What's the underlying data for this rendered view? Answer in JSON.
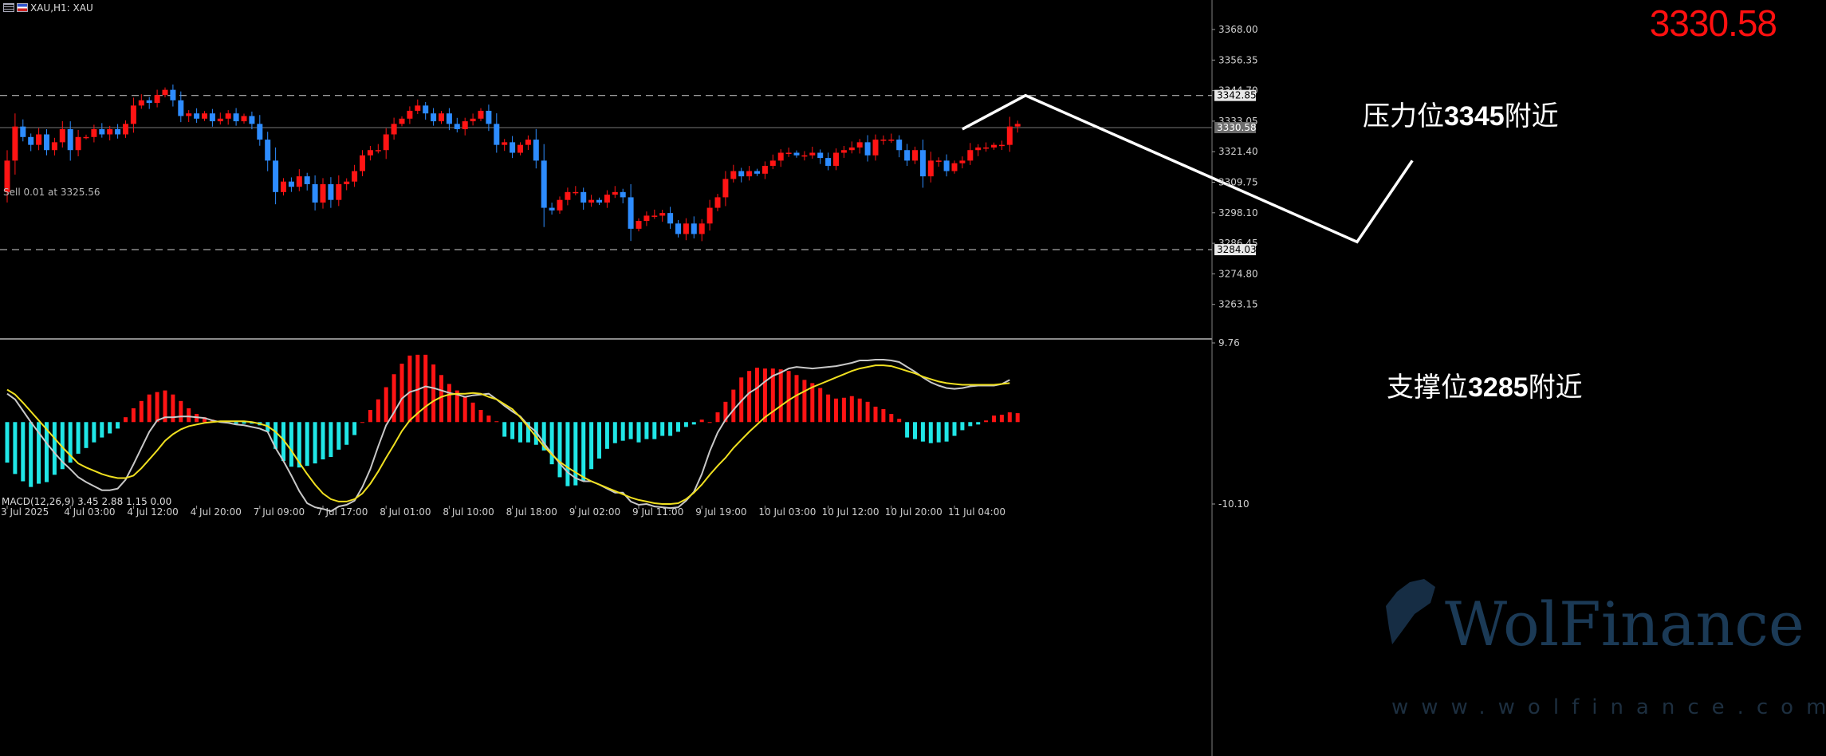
{
  "header": {
    "title": "XAU,H1: XAU",
    "last_price": "3330.58",
    "bid_line_label": "Sell 0.01 at 3325.56"
  },
  "icons": {
    "menu": "menu-icon",
    "symbol": "flag-icon"
  },
  "colors": {
    "background": "#000000",
    "bull_candle": "#ff1414",
    "bear_candle": "#2d8cff",
    "hist_pos": "#ff1414",
    "hist_neg": "#20e6e6",
    "signal_line": "#f0e020",
    "macd_line": "#c8c8c8",
    "price_big": "#ff1010",
    "projection": "#ffffff"
  },
  "annotations": {
    "resistance": {
      "prefix": "压力位",
      "value": "3345",
      "suffix": "附近"
    },
    "support": {
      "prefix": "支撑位",
      "value": "3285",
      "suffix": "附近"
    }
  },
  "watermark": {
    "brand": "WolFinance",
    "url": "www.wolfinance.com"
  },
  "chart_data": [
    {
      "type": "candlestick",
      "title": "XAU,H1: XAU",
      "ylim": [
        3251.5,
        3375
      ],
      "y_ticks": [
        "3368.00",
        "3356.35",
        "3344.70",
        "3333.05",
        "3321.40",
        "3309.75",
        "3298.10",
        "3286.45",
        "3274.80",
        "3263.15"
      ],
      "y_tick_values": [
        3368.0,
        3356.35,
        3344.7,
        3333.05,
        3321.4,
        3309.75,
        3298.1,
        3286.45,
        3274.8,
        3263.15
      ],
      "price_labels": [
        {
          "value": 3342.85,
          "label": "3342.85",
          "style": "dashed",
          "meaning": "resistance"
        },
        {
          "value": 3330.58,
          "label": "3330.58",
          "style": "solid",
          "meaning": "current"
        },
        {
          "value": 3284.03,
          "label": "3284.03",
          "style": "dashed",
          "meaning": "support"
        }
      ],
      "x_ticks": [
        {
          "i": 0,
          "label": "3 Jul 2025"
        },
        {
          "i": 8,
          "label": "4 Jul 03:00"
        },
        {
          "i": 16,
          "label": "4 Jul 12:00"
        },
        {
          "i": 24,
          "label": "4 Jul 20:00"
        },
        {
          "i": 32,
          "label": "7 Jul 09:00"
        },
        {
          "i": 40,
          "label": "7 Jul 17:00"
        },
        {
          "i": 48,
          "label": "8 Jul 01:00"
        },
        {
          "i": 56,
          "label": "8 Jul 10:00"
        },
        {
          "i": 64,
          "label": "8 Jul 18:00"
        },
        {
          "i": 72,
          "label": "9 Jul 02:00"
        },
        {
          "i": 80,
          "label": "9 Jul 11:00"
        },
        {
          "i": 88,
          "label": "9 Jul 19:00"
        },
        {
          "i": 96,
          "label": "10 Jul 03:00"
        },
        {
          "i": 104,
          "label": "10 Jul 12:00"
        },
        {
          "i": 112,
          "label": "10 Jul 20:00"
        },
        {
          "i": 120,
          "label": "11 Jul 04:00"
        }
      ],
      "closes": [
        3318,
        3331,
        3327,
        3324,
        3328,
        3322,
        3325,
        3330,
        3322,
        3327,
        3327,
        3330,
        3328,
        3330,
        3328,
        3332,
        3339,
        3341,
        3340,
        3343,
        3345,
        3341,
        3335,
        3336,
        3334,
        3336,
        3333,
        3334,
        3336,
        3333,
        3335,
        3332,
        3326,
        3318,
        3306,
        3310,
        3308,
        3312,
        3309,
        3302,
        3309,
        3303,
        3309,
        3310,
        3314,
        3320,
        3322,
        3322,
        3328,
        3332,
        3334,
        3337,
        3339,
        3336,
        3333,
        3336,
        3332,
        3330,
        3333,
        3334,
        3337,
        3332,
        3324,
        3325,
        3321,
        3324,
        3326,
        3318,
        3300,
        3299,
        3303,
        3306,
        3306,
        3302,
        3303,
        3302,
        3305,
        3306,
        3304,
        3292,
        3295,
        3297,
        3297,
        3298,
        3294,
        3290,
        3294,
        3290,
        3294,
        3300,
        3304,
        3311,
        3314,
        3312,
        3314,
        3313,
        3316,
        3318,
        3321,
        3321,
        3320,
        3320,
        3321,
        3319,
        3316,
        3321,
        3322,
        3323,
        3325,
        3320,
        3326,
        3326,
        3326,
        3322,
        3318,
        3322,
        3312,
        3318,
        3318,
        3314,
        3317,
        3318,
        3322,
        3323,
        3323,
        3324,
        3324,
        3331,
        3332
      ],
      "projection": [
        {
          "i": 121,
          "value": 3330
        },
        {
          "i": 129,
          "value": 3342.85
        },
        {
          "i": 171,
          "value": 3287
        },
        {
          "i": 178,
          "value": 3318
        }
      ]
    },
    {
      "type": "bar",
      "title": "MACD(12,26,9) 3.45 2.88 1.15 0.00",
      "indicator": "MACD(12,26,9)",
      "ylim": [
        -10.1,
        9.76
      ],
      "y_ticks": [
        "9.76",
        "-10.10"
      ],
      "values": [
        -5.0,
        -6.4,
        -7.3,
        -8.0,
        -7.6,
        -7.4,
        -6.5,
        -5.8,
        -5.0,
        -3.9,
        -3.2,
        -2.5,
        -1.9,
        -1.4,
        -0.8,
        0.6,
        1.7,
        2.6,
        3.4,
        3.7,
        3.9,
        3.4,
        2.6,
        1.7,
        1.0,
        0.6,
        0.3,
        0.1,
        -0.1,
        -0.2,
        -0.2,
        -0.2,
        -0.4,
        -1.2,
        -3.3,
        -4.8,
        -5.5,
        -5.6,
        -5.4,
        -5.1,
        -4.6,
        -4.3,
        -3.4,
        -2.8,
        -1.6,
        0.0,
        1.5,
        2.8,
        4.3,
        5.9,
        7.2,
        8.2,
        8.3,
        8.3,
        7.1,
        5.8,
        4.7,
        3.9,
        3.2,
        2.4,
        1.5,
        0.8,
        0.1,
        -1.8,
        -2.1,
        -2.5,
        -2.5,
        -2.8,
        -3.5,
        -5.2,
        -6.8,
        -7.9,
        -7.8,
        -7.2,
        -5.8,
        -4.5,
        -3.3,
        -2.6,
        -2.3,
        -2.1,
        -2.5,
        -2.1,
        -2.1,
        -1.7,
        -1.7,
        -1.2,
        -0.6,
        -0.3,
        0.3,
        0.0,
        1.2,
        2.5,
        4.0,
        5.5,
        6.3,
        6.7,
        6.6,
        6.6,
        6.5,
        6.3,
        5.8,
        5.2,
        4.8,
        4.2,
        3.4,
        2.9,
        3.0,
        3.2,
        2.9,
        2.5,
        1.9,
        1.6,
        1.0,
        0.4,
        -1.9,
        -2.1,
        -2.4,
        -2.6,
        -2.5,
        -2.4,
        -1.7,
        -1.0,
        -0.5,
        -0.3,
        0.2,
        0.8,
        0.9,
        1.2,
        1.1
      ],
      "series": [
        {
          "values": [
            3.5,
            2.8,
            1.4,
            0.0,
            -1.3,
            -2.6,
            -3.8,
            -4.9,
            -5.8,
            -6.8,
            -7.4,
            -7.9,
            -8.4,
            -8.4,
            -8.2,
            -7.1,
            -5.2,
            -3.2,
            -1.2,
            0.2,
            0.6,
            0.6,
            0.7,
            0.7,
            0.6,
            0.5,
            0.2,
            0.0,
            -0.1,
            -0.3,
            -0.4,
            -0.6,
            -0.8,
            -1.2,
            -3.2,
            -4.8,
            -6.6,
            -8.5,
            -10.0,
            -10.5,
            -10.7,
            -11.0,
            -10.4,
            -10.2,
            -9.7,
            -8.0,
            -5.8,
            -3.0,
            -0.4,
            1.2,
            2.9,
            3.7,
            4.0,
            4.4,
            4.2,
            3.9,
            3.6,
            3.4,
            3.1,
            3.3,
            3.4,
            3.5,
            2.8,
            2.0,
            1.3,
            0.7,
            -0.4,
            -1.2,
            -2.6,
            -3.9,
            -5.1,
            -6.2,
            -6.9,
            -7.3,
            -7.3,
            -7.7,
            -8.2,
            -8.7,
            -8.7,
            -9.8,
            -10.2,
            -10.1,
            -10.4,
            -10.5,
            -10.6,
            -10.5,
            -9.7,
            -8.6,
            -6.4,
            -3.6,
            -1.3,
            0.3,
            1.5,
            2.6,
            3.6,
            4.2,
            5.0,
            5.7,
            6.1,
            6.6,
            6.8,
            6.7,
            6.6,
            6.7,
            6.8,
            6.9,
            7.1,
            7.3,
            7.6,
            7.6,
            7.7,
            7.7,
            7.6,
            7.4,
            6.8,
            6.2,
            5.5,
            4.9,
            4.5,
            4.2,
            4.1,
            4.2,
            4.4,
            4.5,
            4.5,
            4.5,
            4.7,
            5.2
          ]
        },
        {
          "values": [
            4.0,
            3.4,
            2.4,
            1.3,
            0.2,
            -0.9,
            -2.0,
            -3.1,
            -4.1,
            -5.1,
            -5.6,
            -6.0,
            -6.4,
            -6.7,
            -6.9,
            -6.9,
            -6.6,
            -5.7,
            -4.6,
            -3.5,
            -2.3,
            -1.5,
            -0.9,
            -0.5,
            -0.3,
            -0.1,
            0.0,
            0.1,
            0.1,
            0.1,
            0.1,
            0.0,
            -0.2,
            -0.5,
            -1.2,
            -2.2,
            -3.5,
            -5.0,
            -6.4,
            -7.7,
            -8.8,
            -9.5,
            -9.8,
            -9.8,
            -9.5,
            -8.8,
            -7.6,
            -6.1,
            -4.4,
            -2.8,
            -1.1,
            0.2,
            1.1,
            1.9,
            2.6,
            3.1,
            3.4,
            3.5,
            3.5,
            3.6,
            3.5,
            3.1,
            2.8,
            2.2,
            1.6,
            0.6,
            -0.6,
            -1.8,
            -3.0,
            -4.0,
            -4.9,
            -5.6,
            -6.2,
            -6.8,
            -7.3,
            -7.7,
            -8.1,
            -8.5,
            -8.9,
            -9.3,
            -9.6,
            -9.8,
            -10.0,
            -10.1,
            -10.1,
            -10.0,
            -9.5,
            -8.7,
            -7.7,
            -6.5,
            -5.4,
            -4.4,
            -3.2,
            -2.2,
            -1.2,
            -0.3,
            0.6,
            1.3,
            2.0,
            2.7,
            3.3,
            3.8,
            4.3,
            4.7,
            5.1,
            5.5,
            5.9,
            6.3,
            6.6,
            6.8,
            7.0,
            7.0,
            6.9,
            6.6,
            6.3,
            6.0,
            5.6,
            5.3,
            5.0,
            4.8,
            4.7,
            4.6,
            4.6,
            4.6,
            4.6,
            4.6,
            4.7,
            4.8
          ]
        }
      ]
    }
  ]
}
